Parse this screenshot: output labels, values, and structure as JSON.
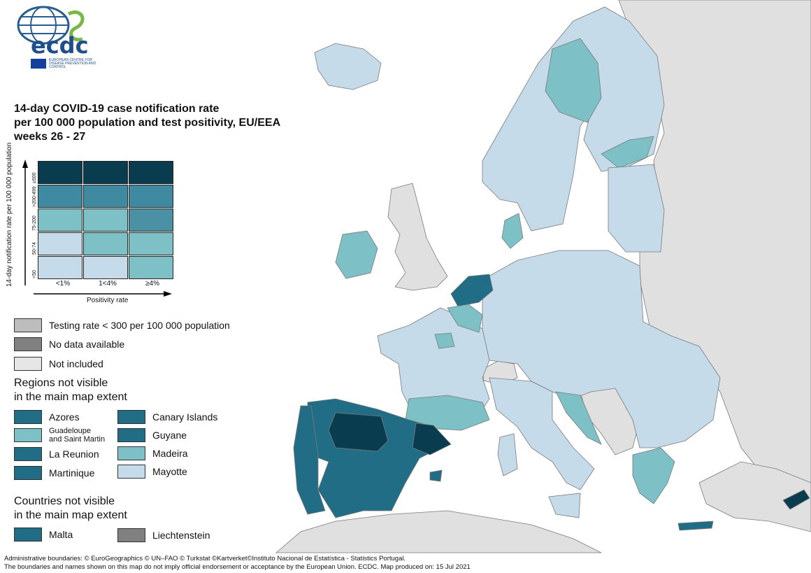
{
  "logo": {
    "name": "ecdc",
    "subtitle": "EUROPEAN CENTRE FOR DISEASE PREVENTION AND CONTROL"
  },
  "title": {
    "line1": "14-day COVID-19 case notification rate",
    "line2": "per 100 000 population and test positivity, EU/EEA",
    "line3": "weeks 26 - 27"
  },
  "matrix": {
    "y_label": "14-day notification rate per 100 000 population",
    "x_label": "Positivity rate",
    "y_ticks": [
      "≥500",
      ">200-499",
      "75-200",
      "50-74",
      "<50"
    ],
    "x_ticks": [
      "<1%",
      "1<4%",
      "≥4%"
    ],
    "colors": [
      [
        "#0a3c50",
        "#0a3c50",
        "#0a3c50"
      ],
      [
        "#3f8aa0",
        "#3f8aa0",
        "#3f8aa0"
      ],
      [
        "#7dc1c7",
        "#7dc1c7",
        "#4a91a3"
      ],
      [
        "#c5dbe9",
        "#7dc1c7",
        "#7dc1c7"
      ],
      [
        "#c5dbe9",
        "#c5dbe9",
        "#7dc1c7"
      ]
    ]
  },
  "legend": {
    "items": [
      {
        "label": "Testing rate < 300 per 100 000 population",
        "color": "#bdbdbd"
      },
      {
        "label": "No data available",
        "color": "#808080"
      },
      {
        "label": "Not included",
        "color": "#e6e6e6"
      }
    ],
    "regions_title_1": "Regions not visible",
    "regions_title_2": "in the main map extent",
    "regions": [
      {
        "label": "Azores",
        "color": "#226d86"
      },
      {
        "label": "Canary Islands",
        "color": "#226d86"
      },
      {
        "label": "Guadeloupe",
        "label2": "and Saint Martin",
        "color": "#7dc1c7"
      },
      {
        "label": "Guyane",
        "color": "#226d86"
      },
      {
        "label": "La Reunion",
        "color": "#226d86"
      },
      {
        "label": "Madeira",
        "color": "#7dc1c7"
      },
      {
        "label": "Martinique",
        "color": "#226d86"
      },
      {
        "label": "Mayotte",
        "color": "#c5dbe9"
      }
    ],
    "countries_title_1": "Countries not visible",
    "countries_title_2": "in the main map extent",
    "countries": [
      {
        "label": "Malta",
        "color": "#226d86"
      },
      {
        "label": "Liechtenstein",
        "color": "#808080"
      }
    ]
  },
  "map_colors": {
    "sea": "#ffffff",
    "not_included": "#e0e0e0",
    "low": "#c5dbe9",
    "mid": "#7dc1c7",
    "high": "#226d86",
    "very_high": "#0a3c50"
  },
  "footer": {
    "line1": "Administrative boundaries: © EuroGeographics © UN–FAO © Turkstat ©Kartverket©Instituto Nacional de Estatística - Statistics Portugal.",
    "line2": "The boundaries and names shown on this map do not imply official endorsement or acceptance by the European Union. ECDC. Map produced on: 15 Jul 2021"
  }
}
